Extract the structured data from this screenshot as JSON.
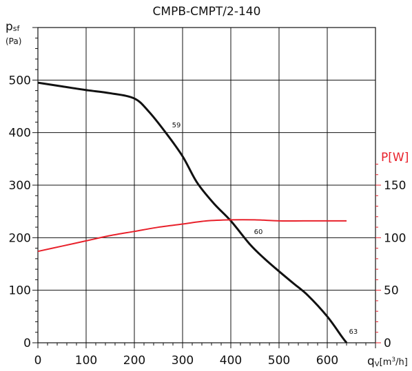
{
  "chart_data": {
    "type": "line",
    "title": "CMPB-CMPT/2-140",
    "x_axis": {
      "label_main": "q",
      "label_sub": "V",
      "label_unit_prefix": "[m",
      "label_unit_sup": "3",
      "label_unit_suffix": "/h]",
      "range": [
        0,
        700
      ],
      "ticks": [
        0,
        100,
        200,
        300,
        400,
        500,
        600
      ],
      "grid_lines": [
        0,
        100,
        200,
        300,
        400,
        500,
        600,
        700
      ]
    },
    "y_axis_left": {
      "label_main": "p",
      "label_sub": "sf",
      "label_unit": "(Pa)",
      "range": [
        0,
        600
      ],
      "ticks": [
        0,
        100,
        200,
        300,
        400,
        500
      ]
    },
    "y_axis_right": {
      "label": "P[W]",
      "range": [
        0,
        300
      ],
      "ticks": [
        0,
        50,
        100,
        150
      ],
      "color": "#e8202a"
    },
    "grid": true,
    "series": [
      {
        "axis": "left",
        "color": "#111111",
        "points": [
          [
            0,
            495
          ],
          [
            50,
            488
          ],
          [
            100,
            481
          ],
          [
            150,
            475
          ],
          [
            200,
            465
          ],
          [
            230,
            440
          ],
          [
            265,
            400
          ],
          [
            300,
            355
          ],
          [
            330,
            305
          ],
          [
            365,
            265
          ],
          [
            400,
            232
          ],
          [
            440,
            187
          ],
          [
            470,
            160
          ],
          [
            500,
            136
          ],
          [
            530,
            113
          ],
          [
            560,
            90
          ],
          [
            600,
            50
          ],
          [
            630,
            12
          ],
          [
            640,
            0
          ]
        ],
        "annotations": [
          {
            "text": "59",
            "x": 278,
            "y": 410
          },
          {
            "text": "60",
            "x": 448,
            "y": 207
          },
          {
            "text": "63",
            "x": 645,
            "y": 17
          }
        ]
      },
      {
        "axis": "right",
        "color": "#e8202a",
        "points": [
          [
            0,
            87
          ],
          [
            50,
            92
          ],
          [
            100,
            97
          ],
          [
            150,
            102
          ],
          [
            200,
            106
          ],
          [
            250,
            110
          ],
          [
            300,
            113
          ],
          [
            350,
            116
          ],
          [
            400,
            117
          ],
          [
            450,
            117
          ],
          [
            500,
            116
          ],
          [
            550,
            116
          ],
          [
            600,
            116
          ],
          [
            640,
            116
          ]
        ]
      }
    ]
  }
}
